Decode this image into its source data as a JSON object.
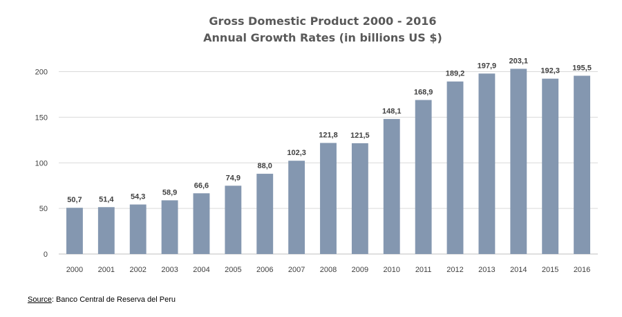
{
  "chart_data": {
    "type": "bar",
    "title": "Gross Domestic Product 2000 - 2016",
    "subtitle": "Annual Growth Rates (in billions US $)",
    "categories": [
      "2000",
      "2001",
      "2002",
      "2003",
      "2004",
      "2005",
      "2006",
      "2007",
      "2008",
      "2009",
      "2010",
      "2011",
      "2012",
      "2013",
      "2014",
      "2015",
      "2016"
    ],
    "values": [
      50.7,
      51.4,
      54.3,
      58.9,
      66.6,
      74.9,
      88.0,
      102.3,
      121.8,
      121.5,
      148.1,
      168.9,
      189.2,
      197.9,
      203.1,
      192.3,
      195.5
    ],
    "data_labels": [
      "50,7",
      "51,4",
      "54,3",
      "58,9",
      "66,6",
      "74,9",
      "88,0",
      "102,3",
      "121,8",
      "121,5",
      "148,1",
      "168,9",
      "189,2",
      "197,9",
      "203,1",
      "192,3",
      "195,5"
    ],
    "y_ticks": [
      0,
      50,
      100,
      150,
      200
    ],
    "ylim": [
      0,
      200
    ],
    "xlabel": "",
    "ylabel": "",
    "grid": true,
    "legend": "none",
    "bar_color": "#8497b0",
    "grid_color": "#d9d9d9"
  },
  "source": {
    "label": "Source",
    "text": ": Banco Central de Reserva del Peru"
  }
}
